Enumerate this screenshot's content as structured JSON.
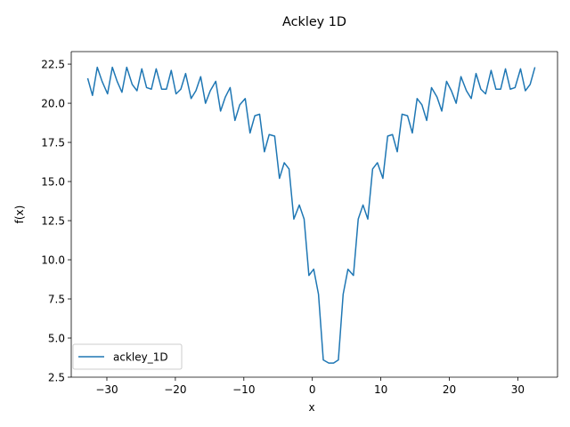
{
  "chart_data": {
    "type": "line",
    "title": "Ackley 1D",
    "xlabel": "x",
    "ylabel": "f(x)",
    "xlim": [
      -35.2,
      35.8
    ],
    "ylim": [
      2.5,
      23.3
    ],
    "xticks": [
      -30,
      -20,
      -10,
      0,
      10,
      20,
      30
    ],
    "yticks": [
      2.5,
      5.0,
      7.5,
      10.0,
      12.5,
      15.0,
      17.5,
      20.0,
      22.5
    ],
    "xtick_labels": [
      "−30",
      "−20",
      "−10",
      "0",
      "10",
      "20",
      "30"
    ],
    "ytick_labels": [
      "2.5",
      "5.0",
      "7.5",
      "10.0",
      "12.5",
      "15.0",
      "17.5",
      "20.0",
      "22.5"
    ],
    "grid": false,
    "legend": "lower-left",
    "color": "#1f77b4",
    "series": [
      {
        "name": "ackley_1D",
        "x": [
          -32.8,
          -32.1,
          -31.4,
          -30.7,
          -29.9,
          -29.2,
          -28.5,
          -27.8,
          -27.1,
          -26.3,
          -25.6,
          -24.9,
          -24.2,
          -23.5,
          -22.8,
          -22.0,
          -21.3,
          -20.6,
          -19.9,
          -19.2,
          -18.5,
          -17.7,
          -17.0,
          -16.3,
          -15.6,
          -14.9,
          -14.1,
          -13.4,
          -12.7,
          -12.0,
          -11.3,
          -10.6,
          -9.8,
          -9.1,
          -8.4,
          -7.7,
          -7.0,
          -6.3,
          -5.5,
          -4.8,
          -4.1,
          -3.4,
          -2.7,
          -1.9,
          -1.2,
          -0.5,
          0.2,
          0.9,
          1.6,
          2.4,
          3.1,
          3.8,
          4.5,
          5.2,
          6.0,
          6.7,
          7.4,
          8.1,
          8.8,
          9.5,
          10.3,
          11.0,
          11.7,
          12.4,
          13.1,
          13.9,
          14.6,
          15.3,
          16.0,
          16.7,
          17.4,
          18.2,
          18.9,
          19.6,
          20.3,
          21.0,
          21.7,
          22.5,
          23.2,
          23.9,
          24.6,
          25.3,
          26.1,
          26.8,
          27.5,
          28.2,
          28.9,
          29.6,
          30.4,
          31.1,
          31.8,
          32.5
        ],
        "y": [
          21.6,
          20.5,
          22.3,
          21.4,
          20.6,
          22.3,
          21.4,
          20.7,
          22.3,
          21.2,
          20.8,
          22.2,
          21.0,
          20.9,
          22.2,
          20.9,
          20.9,
          22.1,
          20.6,
          20.9,
          21.9,
          20.3,
          20.8,
          21.7,
          20.0,
          20.8,
          21.4,
          19.5,
          20.4,
          21.0,
          18.9,
          19.9,
          20.3,
          18.1,
          19.2,
          19.3,
          16.9,
          18.0,
          17.9,
          15.2,
          16.2,
          15.8,
          12.6,
          13.5,
          12.6,
          9.0,
          9.4,
          7.8,
          3.6,
          3.4,
          3.4,
          3.6,
          7.8,
          9.4,
          9.0,
          12.6,
          13.5,
          12.6,
          15.8,
          16.2,
          15.2,
          17.9,
          18.0,
          16.9,
          19.3,
          19.2,
          18.1,
          20.3,
          19.9,
          18.9,
          21.0,
          20.4,
          19.5,
          21.4,
          20.8,
          20.0,
          21.7,
          20.8,
          20.3,
          21.9,
          20.9,
          20.6,
          22.1,
          20.9,
          20.9,
          22.2,
          20.9,
          21.0,
          22.2,
          20.8,
          21.2,
          22.3
        ]
      }
    ]
  }
}
